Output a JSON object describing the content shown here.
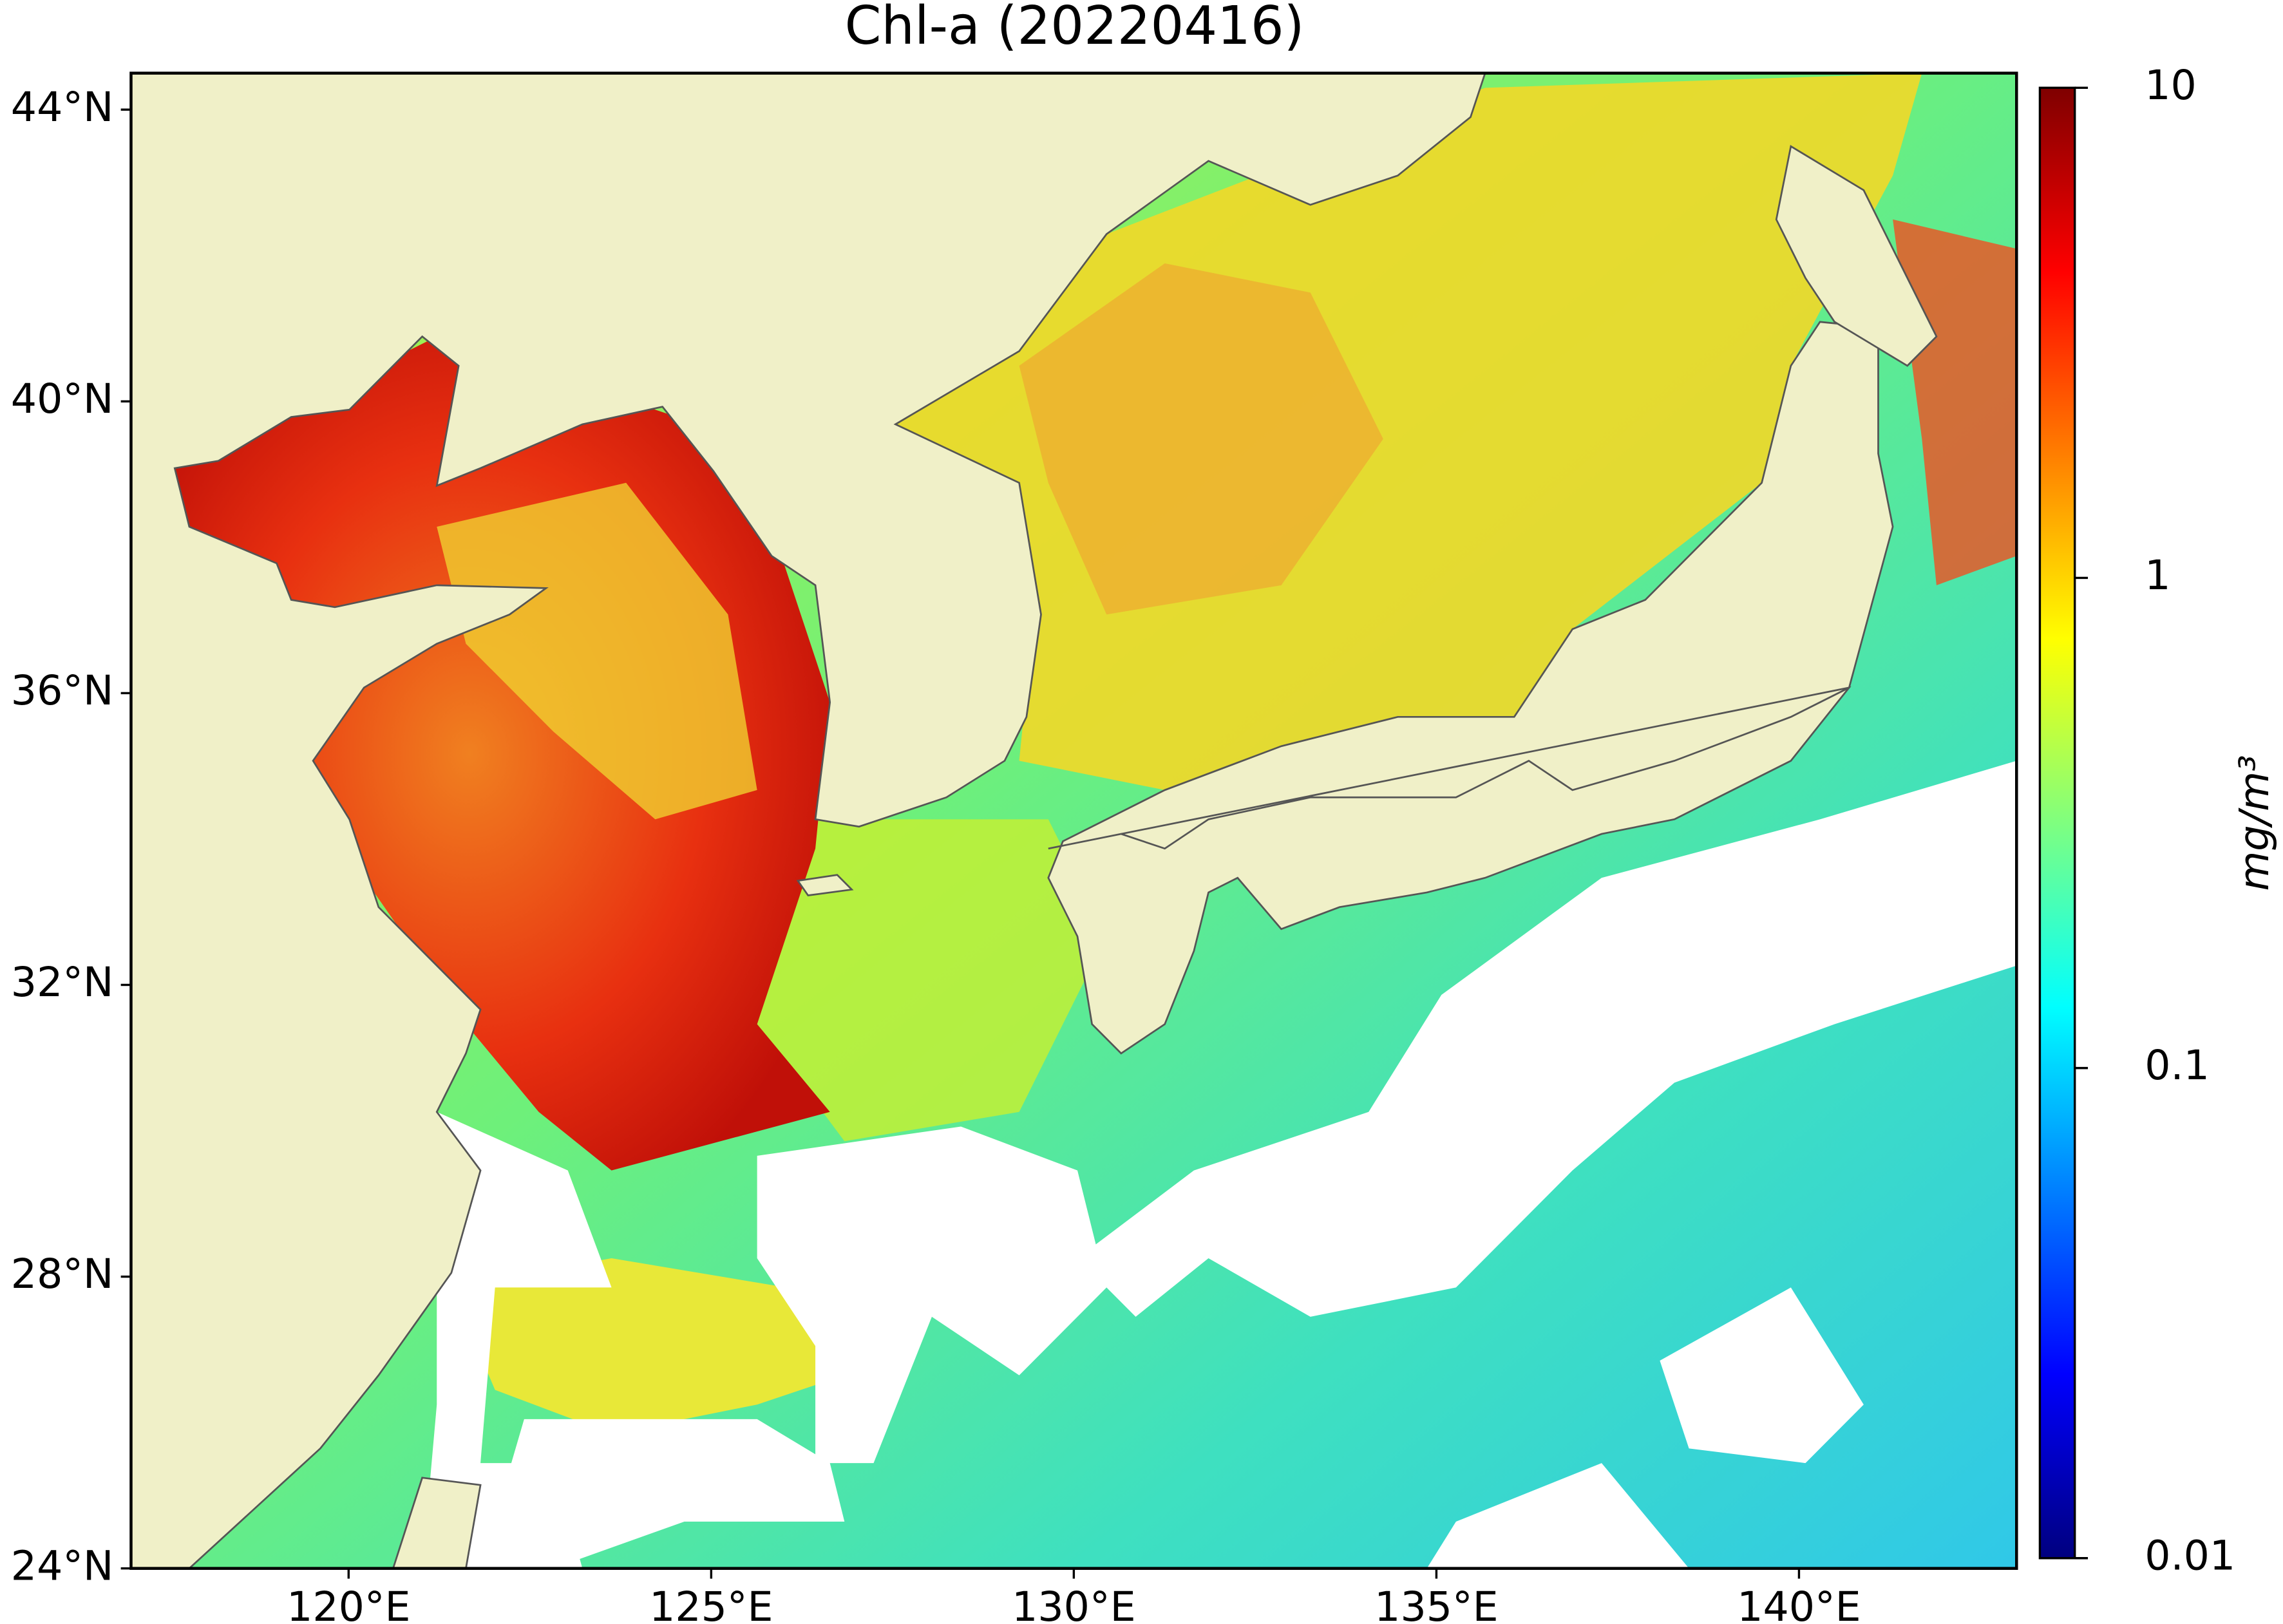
{
  "chart_data": {
    "type": "map",
    "title": "Chl-a (20220416)",
    "xlim": [
      117,
      143
    ],
    "ylim": [
      24,
      44.5
    ],
    "xticks": [
      {
        "value": 120,
        "label": "120°E"
      },
      {
        "value": 125,
        "label": "125°E"
      },
      {
        "value": 130,
        "label": "130°E"
      },
      {
        "value": 135,
        "label": "135°E"
      },
      {
        "value": 140,
        "label": "140°E"
      }
    ],
    "yticks": [
      {
        "value": 24,
        "label": "24°N"
      },
      {
        "value": 28,
        "label": "28°N"
      },
      {
        "value": 32,
        "label": "32°N"
      },
      {
        "value": 36,
        "label": "36°N"
      },
      {
        "value": 40,
        "label": "40°N"
      },
      {
        "value": 44,
        "label": "44°N"
      }
    ],
    "land_color": "#f0f0c8",
    "colorbar": {
      "label": "mg/m³",
      "lim": [
        0.01,
        10
      ],
      "scale": "log",
      "colormap": "jet",
      "ticks": [
        0.01,
        0.1,
        1,
        10
      ]
    }
  }
}
